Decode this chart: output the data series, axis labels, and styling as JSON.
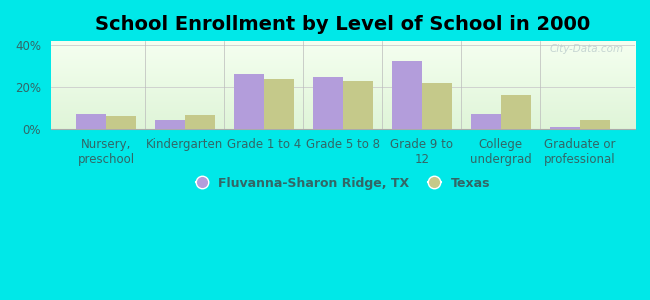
{
  "title": "School Enrollment by Level of School in 2000",
  "categories": [
    "Nursery,\npreschool",
    "Kindergarten",
    "Grade 1 to 4",
    "Grade 5 to 8",
    "Grade 9 to\n12",
    "College\nundergrad",
    "Graduate or\nprofessional"
  ],
  "fluvanna_values": [
    7.0,
    4.0,
    26.0,
    25.0,
    32.5,
    7.0,
    1.0
  ],
  "texas_values": [
    6.0,
    6.5,
    24.0,
    23.0,
    22.0,
    16.0,
    4.0
  ],
  "fluvanna_color": "#b39ddb",
  "texas_color": "#c5c98a",
  "background_color": "#00e8e8",
  "ylim": [
    0,
    42
  ],
  "yticks": [
    0,
    20,
    40
  ],
  "ytick_labels": [
    "0%",
    "20%",
    "40%"
  ],
  "legend_fluvanna": "Fluvanna-Sharon Ridge, TX",
  "legend_texas": "Texas",
  "title_fontsize": 14,
  "tick_fontsize": 8.5,
  "legend_fontsize": 9,
  "bar_width": 0.38,
  "watermark": "City-Data.com",
  "legend_text_color": "#336666",
  "axis_label_color": "#336666"
}
